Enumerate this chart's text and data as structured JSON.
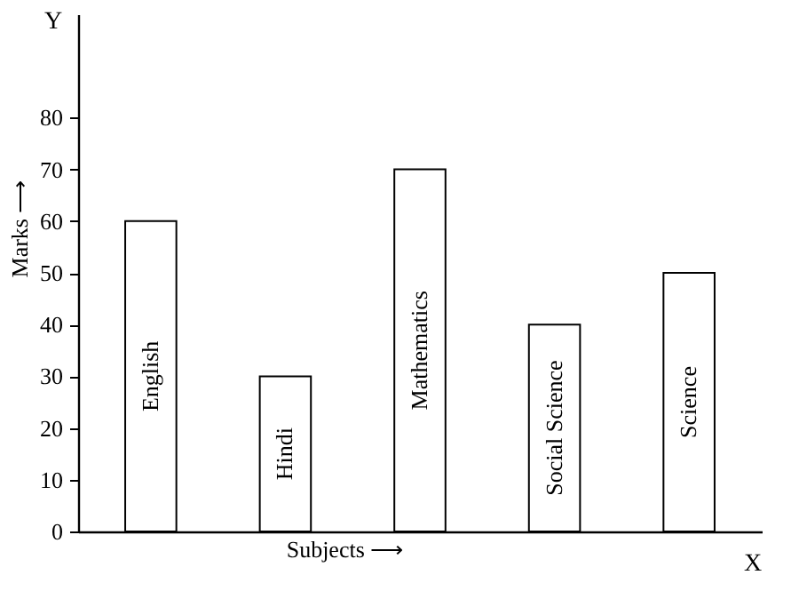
{
  "chart_data": {
    "type": "bar",
    "xlabel": "Subjects ⟶",
    "ylabel": "Marks ⟶",
    "categories": [
      "English",
      "Hindi",
      "Mathematics",
      "Social Science",
      "Science"
    ],
    "values": [
      60,
      30,
      70,
      40,
      50
    ],
    "color": "#ffffff",
    "ylim": [
      0,
      100
    ],
    "yticks": [
      0,
      10,
      20,
      30,
      40,
      50,
      60,
      70,
      80
    ],
    "grid": false,
    "tick_labels": "y",
    "annotations": [
      "Y",
      "X"
    ]
  }
}
